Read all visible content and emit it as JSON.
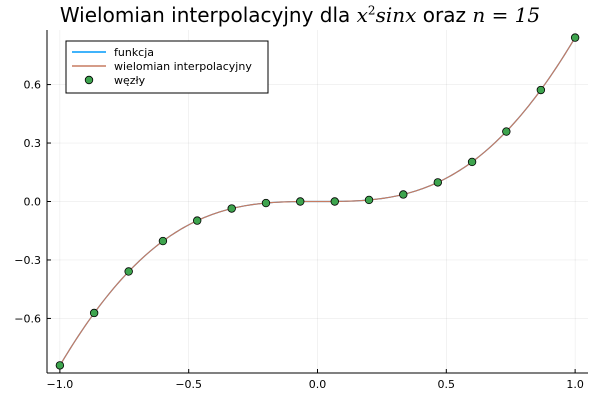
{
  "chart_data": {
    "type": "line",
    "title": {
      "prefix": "Wielomian interpolacyjny dla ",
      "expr_base": "x",
      "expr_exp": "2",
      "expr_rest": "sinx",
      "middle": " oraz ",
      "n_expr": "n = 15"
    },
    "xlim": [
      -1.05,
      1.05
    ],
    "ylim": [
      -0.88,
      0.88
    ],
    "xticks": [
      -1.0,
      -0.5,
      0.0,
      0.5,
      1.0
    ],
    "xtick_labels": [
      "−1.0",
      "−0.5",
      "0.0",
      "0.5",
      "1.0"
    ],
    "yticks": [
      -0.6,
      -0.3,
      0.0,
      0.3,
      0.6
    ],
    "ytick_labels": [
      "−0.6",
      "−0.3",
      "0.0",
      "0.3",
      "0.6"
    ],
    "grid": true,
    "legend_position": "top-left",
    "series": [
      {
        "name": "funkcja",
        "kind": "line",
        "color": "#009AFA"
      },
      {
        "name": "wielomian interpolacyjny",
        "kind": "line",
        "color": "#C77B61"
      },
      {
        "name": "węzły",
        "kind": "scatter",
        "color": "#3EA44E",
        "x": [
          -1.0,
          -0.867,
          -0.733,
          -0.6,
          -0.467,
          -0.333,
          -0.2,
          -0.067,
          0.067,
          0.2,
          0.333,
          0.467,
          0.6,
          0.733,
          0.867,
          1.0
        ],
        "y": [
          -0.841,
          -0.572,
          -0.359,
          -0.203,
          -0.098,
          -0.036,
          -0.008,
          0.0,
          0.0,
          0.008,
          0.036,
          0.098,
          0.203,
          0.359,
          0.572,
          0.841
        ]
      }
    ]
  }
}
